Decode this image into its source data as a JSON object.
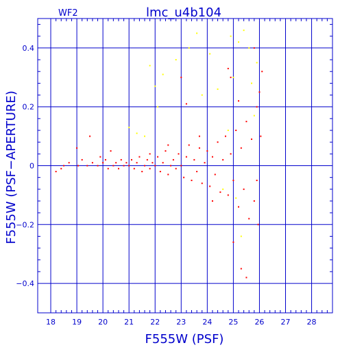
{
  "chart_data": {
    "type": "scatter",
    "title": "lmc_u4b104",
    "chip_label": "WF2",
    "xlabel": "F555W (PSF)",
    "ylabel": "F555W (PSF−APERTURE)",
    "xlim": [
      17.5,
      28.8
    ],
    "ylim": [
      -0.5,
      0.5
    ],
    "x_ticks": [
      18,
      19,
      20,
      21,
      22,
      23,
      24,
      25,
      26,
      27,
      28
    ],
    "y_ticks": [
      -0.4,
      -0.2,
      0,
      0.2,
      0.4
    ],
    "y_tick_labels": [
      "−0.4",
      "−0.2",
      "0",
      "0.2",
      "0.4"
    ],
    "grid": true,
    "colors": {
      "frame": "#0000cc",
      "primary": "#ff0000",
      "secondary": "#ffff00"
    },
    "series": [
      {
        "color": "#ff0000",
        "points": [
          [
            18.2,
            -0.02
          ],
          [
            18.4,
            -0.01
          ],
          [
            18.5,
            0.0
          ],
          [
            18.7,
            0.01
          ],
          [
            19.0,
            0.06
          ],
          [
            19.05,
            0.0
          ],
          [
            19.2,
            0.02
          ],
          [
            19.4,
            0.0
          ],
          [
            19.5,
            0.1
          ],
          [
            19.6,
            0.01
          ],
          [
            19.8,
            0.0
          ],
          [
            19.9,
            0.03
          ],
          [
            20.0,
            0.01
          ],
          [
            20.1,
            0.02
          ],
          [
            20.2,
            -0.01
          ],
          [
            20.3,
            0.05
          ],
          [
            20.4,
            0.0
          ],
          [
            20.5,
            0.01
          ],
          [
            20.6,
            -0.01
          ],
          [
            20.7,
            0.02
          ],
          [
            20.8,
            0.0
          ],
          [
            20.9,
            0.01
          ],
          [
            21.0,
            0.0
          ],
          [
            21.1,
            0.02
          ],
          [
            21.2,
            -0.01
          ],
          [
            21.3,
            0.01
          ],
          [
            21.4,
            0.03
          ],
          [
            21.5,
            -0.02
          ],
          [
            21.6,
            0.0
          ],
          [
            21.7,
            0.02
          ],
          [
            21.8,
            -0.01
          ],
          [
            21.9,
            0.01
          ],
          [
            22.0,
            0.0
          ],
          [
            22.1,
            0.03
          ],
          [
            22.2,
            -0.02
          ],
          [
            22.3,
            0.01
          ],
          [
            22.4,
            0.05
          ],
          [
            22.5,
            -0.03
          ],
          [
            22.6,
            0.0
          ],
          [
            22.7,
            0.02
          ],
          [
            22.8,
            -0.01
          ],
          [
            22.9,
            0.04
          ],
          [
            23.0,
            0.0
          ],
          [
            23.1,
            -0.04
          ],
          [
            23.2,
            0.03
          ],
          [
            23.3,
            0.07
          ],
          [
            23.4,
            -0.05
          ],
          [
            23.5,
            0.02
          ],
          [
            23.6,
            -0.02
          ],
          [
            23.7,
            0.06
          ],
          [
            23.8,
            -0.06
          ],
          [
            23.9,
            0.01
          ],
          [
            24.0,
            0.05
          ],
          [
            24.1,
            -0.07
          ],
          [
            24.2,
            0.03
          ],
          [
            24.3,
            -0.03
          ],
          [
            24.4,
            0.08
          ],
          [
            24.5,
            -0.09
          ],
          [
            24.6,
            0.02
          ],
          [
            24.7,
            0.1
          ],
          [
            24.8,
            -0.1
          ],
          [
            24.9,
            0.04
          ],
          [
            25.0,
            -0.05
          ],
          [
            25.1,
            0.12
          ],
          [
            25.2,
            -0.14
          ],
          [
            25.3,
            0.06
          ],
          [
            25.4,
            -0.08
          ],
          [
            25.5,
            0.15
          ],
          [
            25.6,
            -0.18
          ],
          [
            25.7,
            0.09
          ],
          [
            25.8,
            -0.12
          ],
          [
            25.9,
            0.2
          ],
          [
            25.95,
            -0.2
          ],
          [
            26.0,
            0.25
          ],
          [
            26.05,
            0.1
          ],
          [
            25.0,
            -0.26
          ],
          [
            25.3,
            -0.35
          ],
          [
            25.5,
            -0.38
          ],
          [
            24.9,
            0.3
          ],
          [
            26.1,
            0.32
          ],
          [
            23.0,
            0.3
          ],
          [
            23.2,
            0.21
          ],
          [
            24.8,
            0.33
          ],
          [
            25.2,
            0.22
          ],
          [
            25.8,
            0.4
          ],
          [
            21.8,
            0.04
          ],
          [
            22.5,
            0.07
          ],
          [
            23.7,
            0.1
          ],
          [
            24.2,
            -0.12
          ],
          [
            25.9,
            -0.05
          ]
        ]
      },
      {
        "color": "#ffff00",
        "points": [
          [
            21.0,
            0.13
          ],
          [
            21.3,
            0.11
          ],
          [
            21.6,
            0.1
          ],
          [
            21.8,
            0.34
          ],
          [
            22.0,
            0.27
          ],
          [
            22.1,
            0.2
          ],
          [
            22.3,
            0.31
          ],
          [
            22.8,
            0.36
          ],
          [
            23.3,
            0.4
          ],
          [
            23.6,
            0.45
          ],
          [
            23.8,
            0.24
          ],
          [
            24.1,
            0.38
          ],
          [
            24.4,
            0.26
          ],
          [
            24.8,
            0.12
          ],
          [
            25.0,
            0.3
          ],
          [
            25.2,
            0.42
          ],
          [
            25.4,
            0.46
          ],
          [
            25.6,
            0.4
          ],
          [
            25.7,
            0.28
          ],
          [
            25.8,
            0.17
          ],
          [
            25.9,
            0.35
          ],
          [
            24.6,
            -0.08
          ],
          [
            25.1,
            -0.11
          ],
          [
            25.3,
            -0.24
          ],
          [
            24.9,
            0.44
          ]
        ]
      }
    ]
  }
}
